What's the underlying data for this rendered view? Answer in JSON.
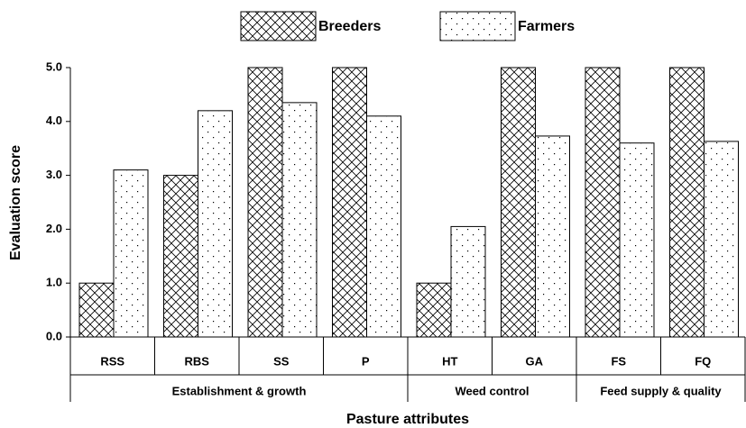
{
  "chart_data": {
    "type": "bar",
    "categories": [
      "RSS",
      "RBS",
      "SS",
      "P",
      "HT",
      "GA",
      "FS",
      "FQ"
    ],
    "groups": [
      {
        "label": "Establishment & growth",
        "categories": [
          "RSS",
          "RBS",
          "SS",
          "P"
        ]
      },
      {
        "label": "Weed control",
        "categories": [
          "HT",
          "GA"
        ]
      },
      {
        "label": "Feed supply & quality",
        "categories": [
          "FS",
          "FQ"
        ]
      }
    ],
    "series": [
      {
        "name": "Breeders",
        "color": "#000000",
        "pattern": "crosshatch",
        "values": [
          1.0,
          3.0,
          5.0,
          5.0,
          1.0,
          5.0,
          5.0,
          5.0
        ]
      },
      {
        "name": "Farmers",
        "color": "#000000",
        "pattern": "dots",
        "values": [
          3.1,
          4.2,
          4.35,
          4.1,
          2.05,
          3.73,
          3.6,
          3.63
        ]
      }
    ],
    "xlabel": "Pasture attributes",
    "ylabel": "Evaluation score",
    "ylim": [
      0,
      5
    ],
    "yticks": [
      {
        "value": 0,
        "label": "0.0"
      },
      {
        "value": 1,
        "label": "1.0"
      },
      {
        "value": 2,
        "label": "2.0"
      },
      {
        "value": 3,
        "label": "3.0"
      },
      {
        "value": 4,
        "label": "4.0"
      },
      {
        "value": 5,
        "label": "5.0"
      }
    ],
    "grid": false,
    "legend": "top"
  }
}
